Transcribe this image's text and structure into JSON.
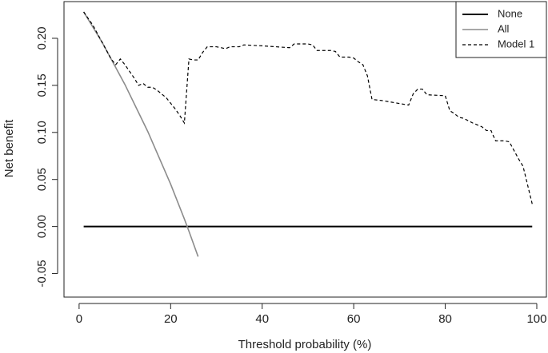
{
  "chart_data": {
    "type": "line",
    "x_label": "Threshold probability (%)",
    "y_label": "Net benefit",
    "xlim": [
      -3.3,
      102.1
    ],
    "ylim": [
      -0.075,
      0.239
    ],
    "xticks": [
      0,
      20,
      40,
      60,
      80,
      100
    ],
    "yticks": [
      -0.05,
      {
        "value": 0,
        "label": "0.00"
      },
      0.05,
      {
        "value": 0.1,
        "label": "0.10"
      },
      0.15,
      {
        "value": 0.2,
        "label": "0.20"
      }
    ],
    "legend": "top-right",
    "series": [
      {
        "name": "None",
        "color": "#000000",
        "dash": false,
        "width": 2,
        "x": [
          1,
          99
        ],
        "values": [
          0,
          0
        ]
      },
      {
        "name": "All",
        "color": "#8c8c8c",
        "dash": false,
        "width": 1.6,
        "x": [
          1,
          5,
          10,
          15,
          20,
          23,
          24,
          26
        ],
        "values": [
          0.228,
          0.196,
          0.151,
          0.101,
          0.045,
          0.008,
          -0.005,
          -0.032
        ]
      },
      {
        "name": "Model 1",
        "color": "#000000",
        "dash": true,
        "width": 1.2,
        "x": [
          1,
          3,
          5,
          7,
          8,
          9,
          10,
          11,
          12,
          13,
          14,
          15,
          16,
          17,
          18,
          19,
          20,
          21,
          22,
          23,
          24,
          25,
          26,
          27,
          28,
          30,
          32,
          33,
          35,
          36,
          40,
          46,
          47,
          50,
          51,
          52,
          55,
          56,
          57,
          59,
          60,
          61,
          62,
          63,
          64,
          66,
          72,
          73,
          74,
          75,
          76,
          80,
          81,
          82,
          83,
          84,
          86,
          88,
          89,
          90,
          91,
          93,
          94,
          96,
          97,
          99
        ],
        "values": [
          0.228,
          0.214,
          0.196,
          0.178,
          0.172,
          0.178,
          0.172,
          0.165,
          0.158,
          0.15,
          0.152,
          0.148,
          0.148,
          0.145,
          0.141,
          0.137,
          0.131,
          0.125,
          0.118,
          0.11,
          0.178,
          0.177,
          0.177,
          0.185,
          0.191,
          0.191,
          0.189,
          0.191,
          0.191,
          0.193,
          0.192,
          0.19,
          0.194,
          0.194,
          0.193,
          0.187,
          0.187,
          0.186,
          0.18,
          0.18,
          0.179,
          0.175,
          0.172,
          0.16,
          0.135,
          0.134,
          0.129,
          0.141,
          0.146,
          0.146,
          0.14,
          0.139,
          0.123,
          0.12,
          0.116,
          0.115,
          0.11,
          0.106,
          0.102,
          0.102,
          0.091,
          0.091,
          0.09,
          0.072,
          0.064,
          0.024
        ]
      }
    ]
  }
}
